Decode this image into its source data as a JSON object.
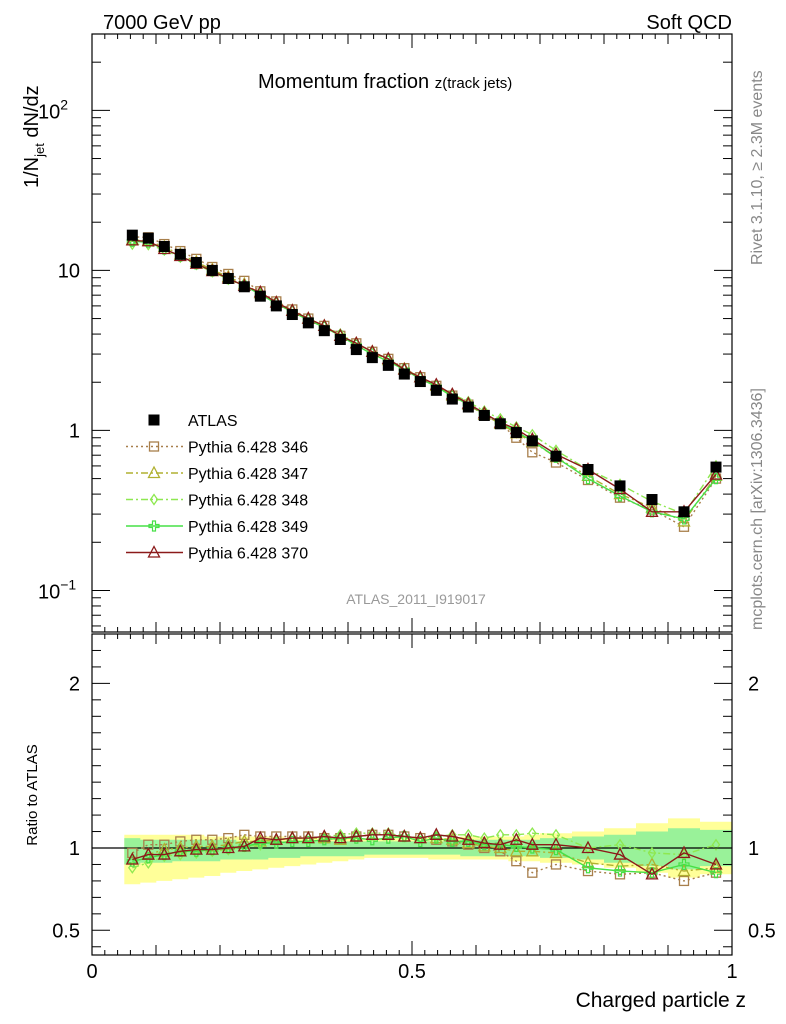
{
  "header": {
    "left": "7000 GeV pp",
    "right": "Soft QCD"
  },
  "side_text": {
    "top": "Rivet 3.1.10, ≥ 2.3M events",
    "bottom": "mcplots.cern.ch [arXiv:1306.3436]"
  },
  "watermark": "ATLAS_2011_I919017",
  "chart_data": [
    {
      "type": "scatter",
      "title": "Momentum fraction ",
      "title_sub": "z(track jets)",
      "ylabel": "1/N",
      "ylabel_sub": "jet",
      "ylabel_tail": " dN/dz",
      "yscale": "log",
      "ylim": [
        0.055,
        300
      ],
      "xlim": [
        0,
        1
      ],
      "yticks": [
        {
          "v": 0.1,
          "base": "10",
          "exp": "−1"
        },
        {
          "v": 1,
          "label": "1"
        },
        {
          "v": 10,
          "label": "10"
        },
        {
          "v": 100,
          "base": "10",
          "exp": "2"
        }
      ],
      "x": [
        0.063,
        0.088,
        0.113,
        0.138,
        0.163,
        0.188,
        0.213,
        0.238,
        0.263,
        0.288,
        0.313,
        0.338,
        0.363,
        0.388,
        0.413,
        0.438,
        0.463,
        0.488,
        0.513,
        0.538,
        0.563,
        0.588,
        0.613,
        0.638,
        0.663,
        0.688,
        0.725,
        0.775,
        0.825,
        0.875,
        0.925,
        0.975
      ],
      "series": [
        {
          "name": "ATLAS",
          "color": "#000000",
          "marker": "filled-square",
          "line": "none",
          "values": [
            16.6,
            15.9,
            14.1,
            12.6,
            11.2,
            10.0,
            8.9,
            7.9,
            6.9,
            6.0,
            5.3,
            4.7,
            4.2,
            3.7,
            3.2,
            2.85,
            2.55,
            2.25,
            2.02,
            1.78,
            1.57,
            1.4,
            1.24,
            1.1,
            0.97,
            0.86,
            0.69,
            0.57,
            0.45,
            0.37,
            0.31,
            0.59
          ]
        },
        {
          "name": "Pythia 6.428 346",
          "color": "#a87f4c",
          "marker": "open-square",
          "line": "dotted",
          "values": [
            16.2,
            16.1,
            14.6,
            13.2,
            11.8,
            10.5,
            9.5,
            8.6,
            7.4,
            6.4,
            5.7,
            5.0,
            4.5,
            3.9,
            3.5,
            3.1,
            2.8,
            2.45,
            2.15,
            1.9,
            1.65,
            1.45,
            1.25,
            1.1,
            0.9,
            0.73,
            0.63,
            0.49,
            0.38,
            0.32,
            0.25,
            0.5
          ]
        },
        {
          "name": "Pythia 6.428 347",
          "color": "#b0b030",
          "marker": "open-triangle",
          "line": "dashdot",
          "values": [
            15.5,
            15.3,
            14.0,
            12.6,
            11.3,
            10.1,
            9.1,
            8.2,
            7.2,
            6.3,
            5.6,
            5.0,
            4.5,
            3.9,
            3.5,
            3.1,
            2.75,
            2.42,
            2.15,
            1.9,
            1.65,
            1.45,
            1.25,
            1.1,
            0.96,
            0.85,
            0.68,
            0.52,
            0.4,
            0.33,
            0.27,
            0.52
          ]
        },
        {
          "name": "Pythia 6.428 348",
          "color": "#8ee850",
          "marker": "open-diamond",
          "line": "dashdot",
          "values": [
            14.6,
            14.5,
            13.4,
            12.1,
            10.9,
            9.8,
            8.8,
            8.0,
            7.1,
            6.3,
            5.6,
            5.0,
            4.5,
            4.0,
            3.5,
            3.1,
            2.8,
            2.42,
            2.15,
            1.91,
            1.69,
            1.51,
            1.32,
            1.18,
            1.05,
            0.94,
            0.75,
            0.57,
            0.46,
            0.36,
            0.3,
            0.6
          ]
        },
        {
          "name": "Pythia 6.428 349",
          "color": "#46e046",
          "marker": "open-cross",
          "line": "solid",
          "values": [
            15.2,
            15.0,
            13.6,
            12.3,
            11.0,
            9.9,
            8.9,
            8.0,
            7.1,
            6.2,
            5.5,
            4.9,
            4.4,
            3.9,
            3.4,
            3.0,
            2.7,
            2.4,
            2.1,
            1.88,
            1.63,
            1.46,
            1.27,
            1.12,
            0.98,
            0.86,
            0.68,
            0.5,
            0.39,
            0.31,
            0.28,
            0.5
          ]
        },
        {
          "name": "Pythia 6.428 370",
          "color": "#8b1a1a",
          "marker": "open-triangle",
          "line": "solid",
          "values": [
            15.4,
            15.2,
            13.6,
            12.3,
            11.0,
            9.9,
            8.9,
            8.0,
            7.3,
            6.3,
            5.6,
            5.0,
            4.5,
            3.9,
            3.5,
            3.1,
            2.8,
            2.4,
            2.15,
            1.93,
            1.68,
            1.47,
            1.28,
            1.12,
            1.02,
            0.88,
            0.71,
            0.57,
            0.43,
            0.31,
            0.31,
            0.53
          ]
        }
      ]
    },
    {
      "type": "scatter",
      "ylabel": "Ratio to ATLAS",
      "xlabel": "Charged particle z",
      "ylim": [
        0.35,
        2.3
      ],
      "xlim": [
        0,
        1
      ],
      "yticks": [
        0.5,
        1,
        2
      ],
      "xticks": [
        0,
        0.5,
        1
      ],
      "xtick_labels": [
        "0",
        "0.5",
        "1"
      ],
      "reference": 1,
      "band_outer": [
        [
          0.78,
          1.08
        ],
        [
          0.79,
          1.08
        ],
        [
          0.8,
          1.08
        ],
        [
          0.81,
          1.08
        ],
        [
          0.82,
          1.08
        ],
        [
          0.83,
          1.07
        ],
        [
          0.85,
          1.07
        ],
        [
          0.86,
          1.07
        ],
        [
          0.87,
          1.07
        ],
        [
          0.88,
          1.07
        ],
        [
          0.89,
          1.06
        ],
        [
          0.9,
          1.06
        ],
        [
          0.91,
          1.06
        ],
        [
          0.92,
          1.06
        ],
        [
          0.93,
          1.06
        ],
        [
          0.94,
          1.06
        ],
        [
          0.94,
          1.06
        ],
        [
          0.94,
          1.06
        ],
        [
          0.94,
          1.06
        ],
        [
          0.93,
          1.06
        ],
        [
          0.93,
          1.06
        ],
        [
          0.93,
          1.07
        ],
        [
          0.93,
          1.07
        ],
        [
          0.93,
          1.07
        ],
        [
          0.92,
          1.07
        ],
        [
          0.92,
          1.08
        ],
        [
          0.91,
          1.09
        ],
        [
          0.9,
          1.1
        ],
        [
          0.88,
          1.12
        ],
        [
          0.85,
          1.15
        ],
        [
          0.82,
          1.18
        ],
        [
          0.84,
          1.16
        ]
      ],
      "band_inner": [
        [
          0.9,
          1.06
        ],
        [
          0.91,
          1.05
        ],
        [
          0.91,
          1.05
        ],
        [
          0.92,
          1.05
        ],
        [
          0.92,
          1.05
        ],
        [
          0.92,
          1.05
        ],
        [
          0.93,
          1.05
        ],
        [
          0.93,
          1.04
        ],
        [
          0.93,
          1.04
        ],
        [
          0.94,
          1.04
        ],
        [
          0.94,
          1.04
        ],
        [
          0.95,
          1.04
        ],
        [
          0.95,
          1.04
        ],
        [
          0.95,
          1.04
        ],
        [
          0.95,
          1.04
        ],
        [
          0.96,
          1.04
        ],
        [
          0.96,
          1.04
        ],
        [
          0.96,
          1.04
        ],
        [
          0.96,
          1.04
        ],
        [
          0.96,
          1.04
        ],
        [
          0.96,
          1.04
        ],
        [
          0.95,
          1.05
        ],
        [
          0.95,
          1.05
        ],
        [
          0.95,
          1.05
        ],
        [
          0.95,
          1.05
        ],
        [
          0.95,
          1.05
        ],
        [
          0.94,
          1.06
        ],
        [
          0.93,
          1.07
        ],
        [
          0.91,
          1.08
        ],
        [
          0.89,
          1.1
        ],
        [
          0.87,
          1.12
        ],
        [
          0.89,
          1.11
        ]
      ],
      "series": [
        {
          "name": "Pythia 6.428 346",
          "color": "#a87f4c",
          "marker": "open-square",
          "line": "dotted",
          "values": [
            0.97,
            1.02,
            1.02,
            1.04,
            1.05,
            1.05,
            1.06,
            1.08,
            1.07,
            1.07,
            1.07,
            1.07,
            1.06,
            1.06,
            1.07,
            1.08,
            1.08,
            1.07,
            1.06,
            1.05,
            1.04,
            1.02,
            1.0,
            0.98,
            0.92,
            0.85,
            0.9,
            0.86,
            0.84,
            0.85,
            0.8,
            0.85
          ]
        },
        {
          "name": "Pythia 6.428 347",
          "color": "#b0b030",
          "marker": "open-triangle",
          "line": "dashdot",
          "values": [
            0.93,
            0.96,
            0.99,
            1.0,
            1.01,
            1.01,
            1.02,
            1.04,
            1.04,
            1.05,
            1.06,
            1.06,
            1.06,
            1.05,
            1.07,
            1.08,
            1.08,
            1.07,
            1.06,
            1.06,
            1.05,
            1.03,
            1.01,
            1.0,
            0.98,
            0.98,
            0.97,
            0.91,
            0.89,
            0.9,
            0.86,
            0.88
          ]
        },
        {
          "name": "Pythia 6.428 348",
          "color": "#8ee850",
          "marker": "open-diamond",
          "line": "dashdot",
          "values": [
            0.88,
            0.91,
            0.95,
            0.96,
            0.97,
            0.98,
            0.99,
            1.01,
            1.02,
            1.05,
            1.06,
            1.06,
            1.07,
            1.08,
            1.09,
            1.09,
            1.09,
            1.07,
            1.06,
            1.07,
            1.08,
            1.08,
            1.06,
            1.08,
            1.08,
            1.09,
            1.08,
            1.0,
            1.02,
            0.97,
            0.96,
            1.02
          ]
        },
        {
          "name": "Pythia 6.428 349",
          "color": "#46e046",
          "marker": "open-cross",
          "line": "solid",
          "values": [
            0.92,
            0.94,
            0.96,
            0.98,
            0.98,
            0.99,
            1.0,
            1.01,
            1.03,
            1.03,
            1.04,
            1.04,
            1.05,
            1.06,
            1.06,
            1.05,
            1.06,
            1.07,
            1.04,
            1.06,
            1.04,
            1.04,
            1.02,
            1.02,
            1.01,
            1.0,
            0.99,
            0.88,
            0.86,
            0.85,
            0.9,
            0.85
          ]
        },
        {
          "name": "Pythia 6.428 370",
          "color": "#8b1a1a",
          "marker": "open-triangle",
          "line": "solid",
          "values": [
            0.93,
            0.96,
            0.96,
            0.98,
            0.99,
            0.99,
            1.0,
            1.01,
            1.06,
            1.05,
            1.06,
            1.06,
            1.07,
            1.06,
            1.07,
            1.08,
            1.08,
            1.07,
            1.06,
            1.08,
            1.07,
            1.05,
            1.03,
            1.02,
            1.05,
            1.02,
            1.02,
            1.0,
            0.96,
            0.84,
            0.97,
            0.9
          ]
        }
      ]
    }
  ]
}
